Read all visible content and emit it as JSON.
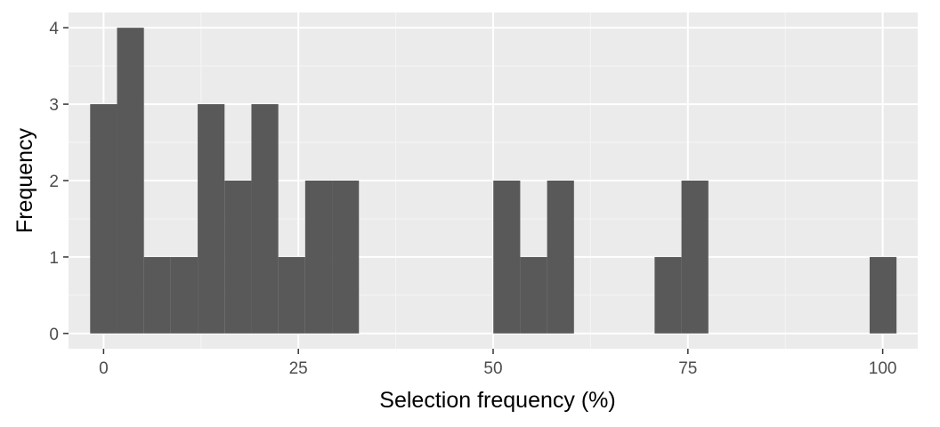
{
  "chart_data": {
    "type": "bar",
    "title": "",
    "xlabel": "Selection frequency (%)",
    "ylabel": "Frequency",
    "xlim": [
      -4.5,
      104.5
    ],
    "ylim": [
      -0.2,
      4.2
    ],
    "x_ticks": [
      0,
      25,
      50,
      75,
      100
    ],
    "x_tick_labels": [
      "0",
      "25",
      "50",
      "75",
      "100"
    ],
    "y_ticks": [
      0,
      1,
      2,
      3,
      4
    ],
    "y_tick_labels": [
      "0",
      "1",
      "2",
      "3",
      "4"
    ],
    "grid": true,
    "bin_width": 3.45,
    "bins": [
      {
        "x": 0,
        "count": 3
      },
      {
        "x": 3.45,
        "count": 4
      },
      {
        "x": 6.9,
        "count": 1
      },
      {
        "x": 10.35,
        "count": 1
      },
      {
        "x": 13.8,
        "count": 3
      },
      {
        "x": 17.25,
        "count": 2
      },
      {
        "x": 20.7,
        "count": 3
      },
      {
        "x": 24.15,
        "count": 1
      },
      {
        "x": 27.6,
        "count": 2
      },
      {
        "x": 31.05,
        "count": 2
      },
      {
        "x": 51.75,
        "count": 2
      },
      {
        "x": 55.2,
        "count": 1
      },
      {
        "x": 58.65,
        "count": 2
      },
      {
        "x": 72.45,
        "count": 1
      },
      {
        "x": 75.9,
        "count": 2
      },
      {
        "x": 100.05,
        "count": 1
      }
    ],
    "colors": {
      "bar": "#595959",
      "panel": "#ebebeb",
      "grid_major": "#ffffff",
      "grid_minor": "#f5f5f5",
      "tick": "#333333",
      "tick_label": "#4d4d4d"
    }
  }
}
